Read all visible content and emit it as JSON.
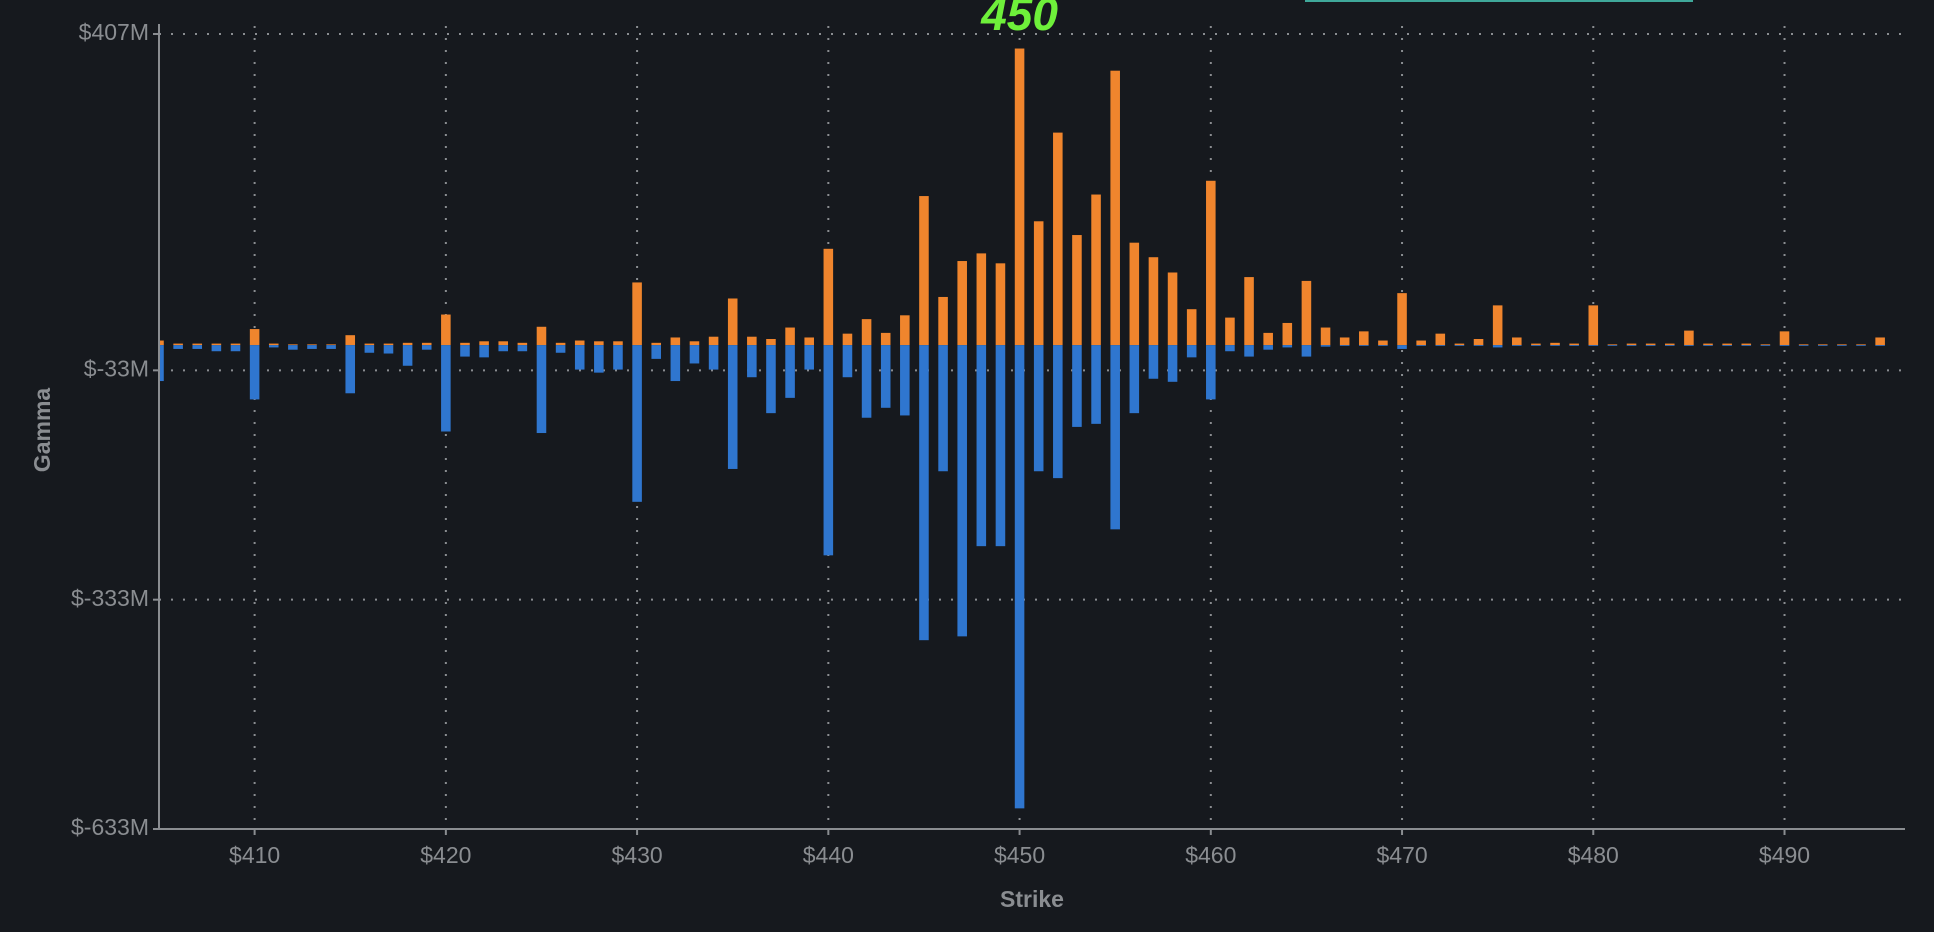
{
  "chart_data": {
    "type": "bar",
    "x_label": "Strike",
    "y_label": "Gamma",
    "annotations": [
      {
        "text": "450",
        "x": 450
      }
    ],
    "x": [
      405,
      406,
      407,
      408,
      409,
      410,
      411,
      412,
      413,
      414,
      415,
      416,
      417,
      418,
      419,
      420,
      421,
      422,
      423,
      424,
      425,
      426,
      427,
      428,
      429,
      430,
      431,
      432,
      433,
      434,
      435,
      436,
      437,
      438,
      439,
      440,
      441,
      442,
      443,
      444,
      445,
      446,
      447,
      448,
      449,
      450,
      451,
      452,
      453,
      454,
      455,
      456,
      457,
      458,
      459,
      460,
      461,
      462,
      463,
      464,
      465,
      466,
      467,
      468,
      469,
      470,
      471,
      472,
      473,
      474,
      475,
      476,
      477,
      478,
      479,
      480,
      481,
      482,
      483,
      484,
      485,
      486,
      487,
      488,
      489,
      490,
      491,
      492,
      493,
      494,
      495
    ],
    "series": [
      {
        "color": "#f0852d",
        "values": [
          6,
          2,
          2,
          2,
          2,
          21,
          2,
          1,
          1,
          1,
          13,
          2,
          2,
          3,
          3,
          40,
          3,
          5,
          5,
          3,
          24,
          3,
          6,
          5,
          5,
          82,
          3,
          10,
          5,
          11,
          61,
          11,
          8,
          23,
          10,
          126,
          15,
          34,
          16,
          39,
          195,
          63,
          110,
          120,
          107,
          388,
          162,
          278,
          144,
          197,
          359,
          134,
          115,
          95,
          47,
          215,
          36,
          89,
          16,
          29,
          84,
          23,
          10,
          18,
          6,
          68,
          6,
          15,
          2,
          8,
          52,
          10,
          2,
          3,
          2,
          52,
          1,
          2,
          2,
          2,
          19,
          2,
          2,
          2,
          1,
          18,
          1,
          1,
          1,
          1,
          10
        ]
      },
      {
        "color": "#2f76cf",
        "values": [
          -47,
          -5,
          -5,
          -8,
          -8,
          -71,
          -3,
          -6,
          -5,
          -5,
          -63,
          -10,
          -11,
          -27,
          -6,
          -113,
          -15,
          -16,
          -8,
          -8,
          -115,
          -10,
          -32,
          -36,
          -32,
          -205,
          -18,
          -47,
          -24,
          -32,
          -162,
          -42,
          -89,
          -69,
          -32,
          -275,
          -42,
          -95,
          -82,
          -92,
          -386,
          -165,
          -381,
          -263,
          -263,
          -606,
          -165,
          -174,
          -107,
          -103,
          -241,
          -89,
          -44,
          -48,
          -16,
          -71,
          -8,
          -15,
          -6,
          -3,
          -15,
          -2,
          -1,
          -1,
          -1,
          -5,
          -1,
          -1,
          -1,
          -1,
          -3,
          -1,
          -1,
          -1,
          -1,
          -1,
          -1,
          -1,
          -1,
          -1,
          -1,
          -1,
          -1,
          -1,
          -1,
          -1,
          -1,
          -1,
          -1,
          -1,
          -1
        ]
      }
    ],
    "xlim": [
      405,
      496.3
    ],
    "ylim": [
      -633,
      407
    ],
    "xticks": [
      {
        "value": 410,
        "label": "$410"
      },
      {
        "value": 420,
        "label": "$420"
      },
      {
        "value": 430,
        "label": "$430"
      },
      {
        "value": 440,
        "label": "$440"
      },
      {
        "value": 450,
        "label": "$450"
      },
      {
        "value": 460,
        "label": "$460"
      },
      {
        "value": 470,
        "label": "$470"
      },
      {
        "value": 480,
        "label": "$480"
      },
      {
        "value": 490,
        "label": "$490"
      }
    ],
    "yticks": [
      {
        "value": -633,
        "label": "$-633M"
      },
      {
        "value": -333,
        "label": "$-333M"
      },
      {
        "value": -33,
        "label": "$-33M"
      },
      {
        "value": 407,
        "label": "$407M"
      }
    ],
    "grid": true
  }
}
